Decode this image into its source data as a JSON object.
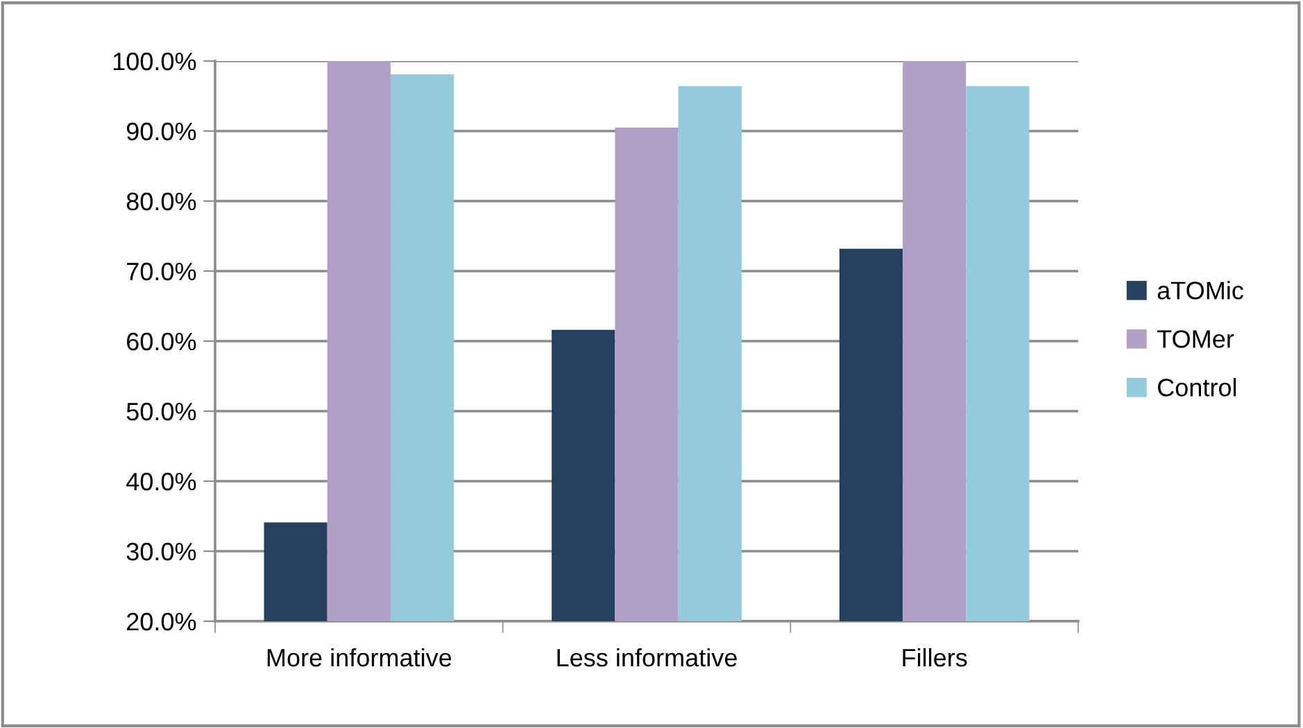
{
  "chart_data": {
    "type": "bar",
    "categories": [
      "More informative",
      "Less informative",
      "Fillers"
    ],
    "series": [
      {
        "name": "aTOMic",
        "color": "#253f5f",
        "values": [
          34.1,
          61.6,
          73.2
        ]
      },
      {
        "name": "TOMer",
        "color": "#b1a0c6",
        "values": [
          100,
          90.5,
          100
        ]
      },
      {
        "name": "Control",
        "color": "#93cbdc",
        "values": [
          98.1,
          96.4,
          96.4
        ]
      }
    ],
    "ylim": [
      20,
      100
    ],
    "yticks": [
      {
        "value": 20,
        "label": "20.0%"
      },
      {
        "value": 30,
        "label": "30.0%"
      },
      {
        "value": 40,
        "label": "40.0%"
      },
      {
        "value": 50,
        "label": "50.0%"
      },
      {
        "value": 60,
        "label": "60.0%"
      },
      {
        "value": 70,
        "label": "70.0%"
      },
      {
        "value": 80,
        "label": "80.0%"
      },
      {
        "value": 90,
        "label": "90.0%"
      },
      {
        "value": 100,
        "label": "100.0%"
      }
    ],
    "grid": "y",
    "legend": "right"
  }
}
